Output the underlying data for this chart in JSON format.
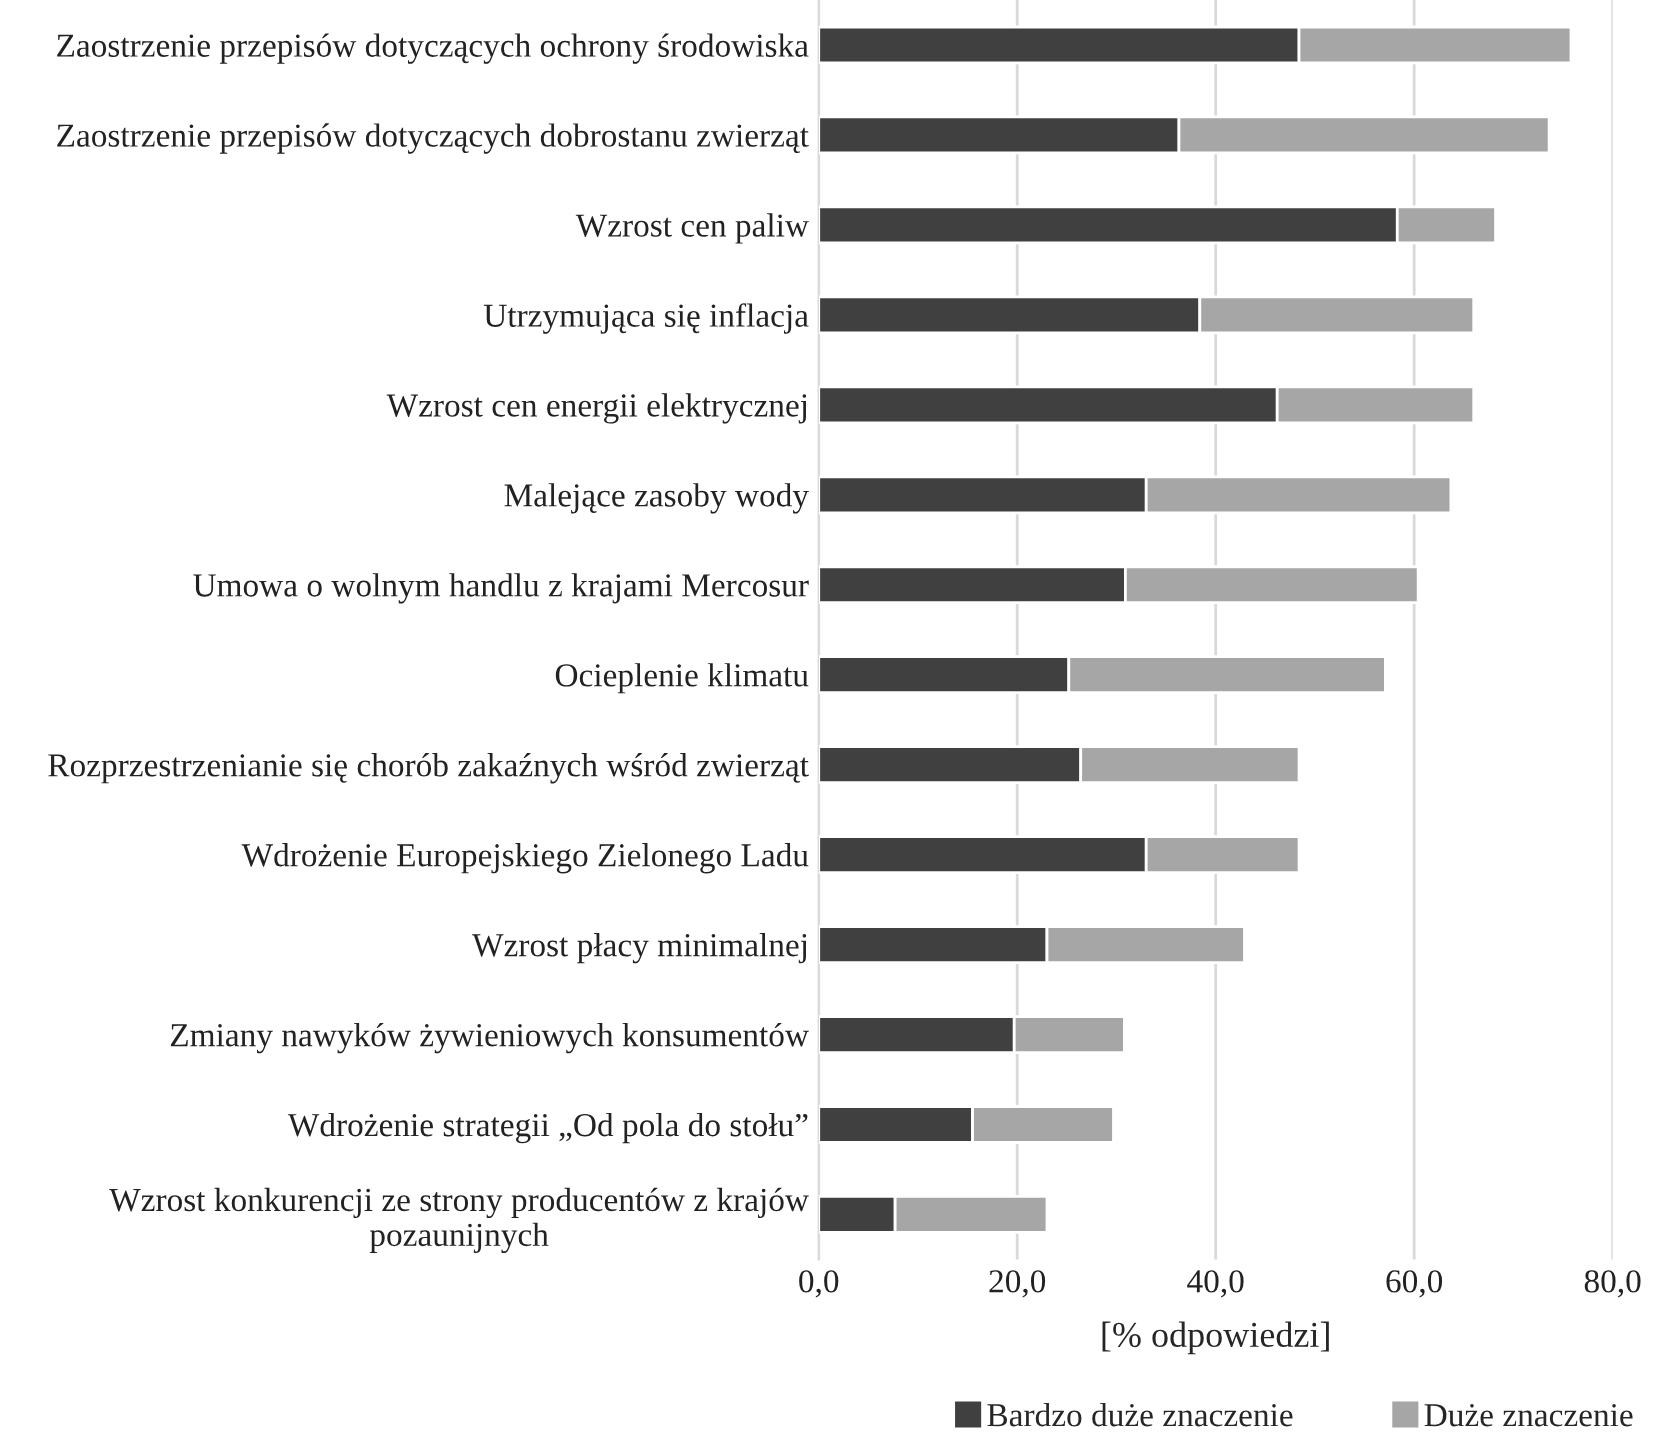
{
  "chart_data": {
    "type": "bar",
    "orientation": "horizontal",
    "stacked": true,
    "categories": [
      "Zaostrzenie przepisów dotyczących ochrony środowiska",
      "Zaostrzenie przepisów dotyczących dobrostanu zwierząt",
      "Wzrost cen paliw",
      "Utrzymująca się inflacja",
      "Wzrost cen energii elektrycznej",
      "Malejące zasoby wody",
      "Umowa o wolnym handlu z krajami Mercosur",
      "Ocieplenie klimatu",
      "Rozprzestrzenianie się chorób zakaźnych wśród zwierząt",
      "Wdrożenie Europejskiego Zielonego Ladu",
      "Wzrost płacy minimalnej",
      "Zmiany nawyków żywieniowych konsumentów",
      "Wdrożenie strategii „Od pola do stołu”",
      "Wzrost konkurencji ze strony producentów z krajów\npozaunijnych"
    ],
    "series": [
      {
        "name": "Bardzo duże znaczenie",
        "color": "#404040",
        "values": [
          48.4,
          36.3,
          58.3,
          38.4,
          46.2,
          33.0,
          30.9,
          25.2,
          26.4,
          33.0,
          23.0,
          19.7,
          15.5,
          7.7
        ]
      },
      {
        "name": "Duże znaczenie",
        "color": "#a6a6a6",
        "values": [
          27.4,
          37.3,
          9.9,
          27.6,
          19.8,
          30.7,
          29.5,
          31.9,
          22.0,
          15.4,
          19.9,
          11.1,
          14.2,
          15.3
        ]
      }
    ],
    "xlabel": "[% odpowiedzi]",
    "xlim": [
      0,
      80
    ],
    "xticks": [
      {
        "value": 0,
        "label": "0,0"
      },
      {
        "value": 20,
        "label": "20,0"
      },
      {
        "value": 40,
        "label": "40,0"
      },
      {
        "value": 60,
        "label": "60,0"
      },
      {
        "value": 80,
        "label": "80,0"
      }
    ],
    "grid": "x",
    "legend": "bottom"
  }
}
